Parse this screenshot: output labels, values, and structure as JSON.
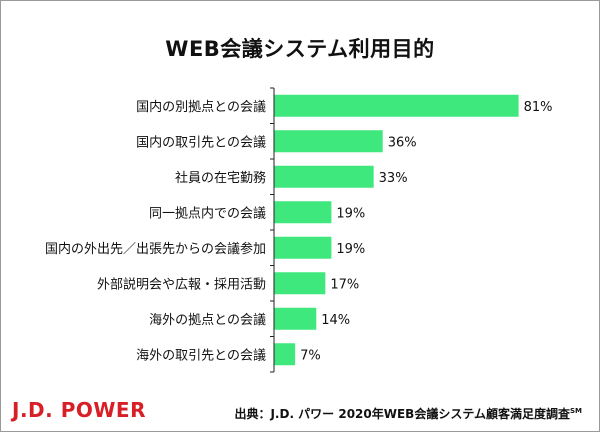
{
  "chart_data": {
    "type": "bar",
    "orientation": "horizontal",
    "title": "WEB会議システム利用目的",
    "categories": [
      "国内の別拠点との会議",
      "国内の取引先との会議",
      "社員の在宅勤務",
      "同一拠点内での会議",
      "国内の外出先／出張先からの会議参加",
      "外部説明会や広報・採用活動",
      "海外の拠点との会議",
      "海外の取引先との会議"
    ],
    "values": [
      81,
      36,
      33,
      19,
      19,
      17,
      14,
      7
    ],
    "value_labels": [
      "81%",
      "36%",
      "33%",
      "19%",
      "19%",
      "17%",
      "14%",
      "7%"
    ],
    "unit": "%",
    "xlim": [
      0,
      100
    ],
    "grid": false,
    "legend": "none",
    "bar_color": "#3ee87d"
  },
  "footer": {
    "logo": "J.D. POWER",
    "source": "出典：J.D. パワー 2020年WEB会議システム顧客満足度調査",
    "source_mark": "SM"
  },
  "colors": {
    "logo": "#d61f26",
    "axis": "#222222"
  }
}
